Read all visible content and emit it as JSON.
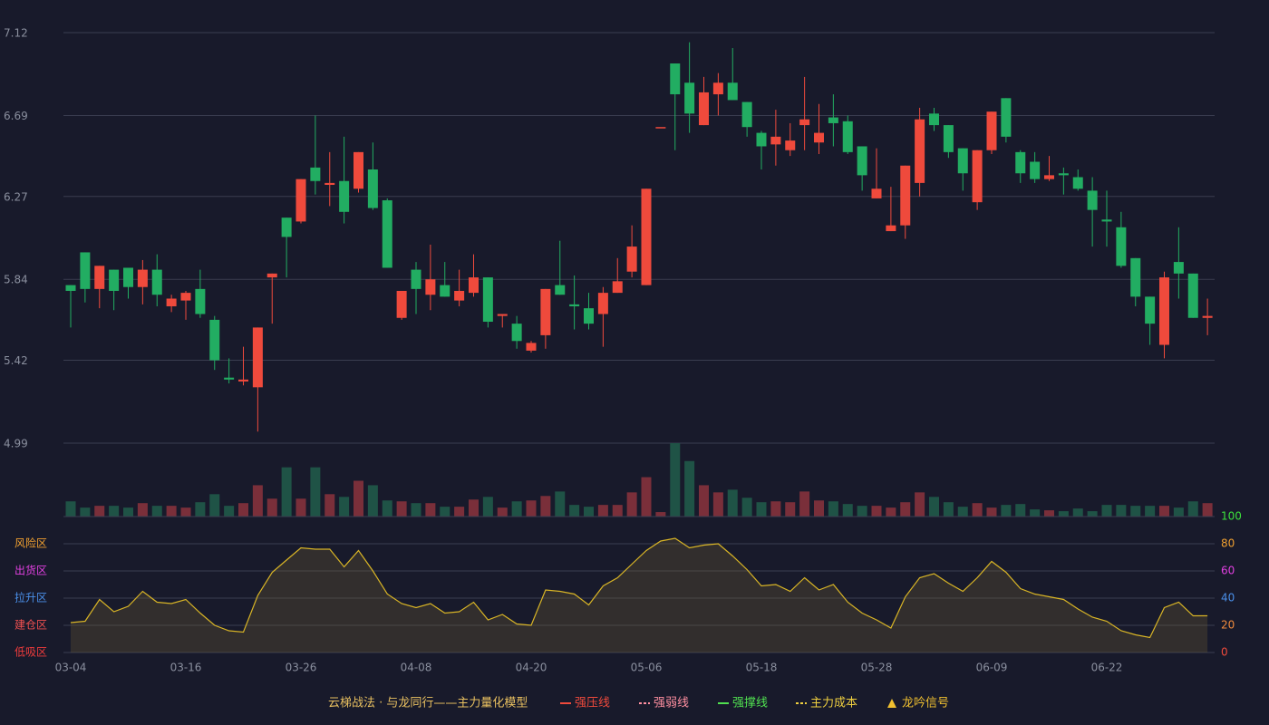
{
  "chart_data": {
    "type": "candlestick",
    "categories": [
      "03-04",
      null,
      null,
      null,
      null,
      null,
      null,
      null,
      "03-16",
      null,
      null,
      null,
      null,
      null,
      null,
      null,
      "03-26",
      null,
      null,
      null,
      null,
      null,
      null,
      null,
      "04-08",
      null,
      null,
      null,
      null,
      null,
      null,
      null,
      "04-20",
      null,
      null,
      null,
      null,
      null,
      null,
      null,
      "05-06",
      null,
      null,
      null,
      null,
      null,
      null,
      null,
      "05-18",
      null,
      null,
      null,
      null,
      null,
      null,
      null,
      "05-28",
      null,
      null,
      null,
      null,
      null,
      null,
      null,
      "06-09",
      null,
      null,
      null,
      null,
      null,
      null,
      null,
      "06-22",
      null,
      null,
      null,
      null,
      null,
      null,
      null
    ],
    "open": [
      5.81,
      5.98,
      5.79,
      5.89,
      5.9,
      5.8,
      5.89,
      5.7,
      5.73,
      5.79,
      5.63,
      5.33,
      5.31,
      5.28,
      5.85,
      6.16,
      6.14,
      6.42,
      6.33,
      6.35,
      6.31,
      6.41,
      6.25,
      5.64,
      5.89,
      5.76,
      5.81,
      5.73,
      5.77,
      5.85,
      5.65,
      5.61,
      5.47,
      5.55,
      5.81,
      5.71,
      5.69,
      5.66,
      5.77,
      5.88,
      5.81,
      6.63,
      6.96,
      6.86,
      6.64,
      6.8,
      6.86,
      6.76,
      6.6,
      6.54,
      6.51,
      6.64,
      6.55,
      6.68,
      6.66,
      6.53,
      6.26,
      6.09,
      6.12,
      6.34,
      6.7,
      6.64,
      6.52,
      6.24,
      6.51,
      6.78,
      6.5,
      6.45,
      6.36,
      6.39,
      6.37,
      6.3,
      6.15,
      6.11,
      5.95,
      5.75,
      5.5,
      5.93,
      5.87,
      5.64
    ],
    "close": [
      5.78,
      5.79,
      5.91,
      5.78,
      5.8,
      5.89,
      5.76,
      5.74,
      5.77,
      5.66,
      5.42,
      5.32,
      5.32,
      5.59,
      5.87,
      6.06,
      6.36,
      6.35,
      6.34,
      6.19,
      6.5,
      6.21,
      5.9,
      5.78,
      5.79,
      5.84,
      5.75,
      5.78,
      5.85,
      5.62,
      5.66,
      5.52,
      5.51,
      5.79,
      5.76,
      5.7,
      5.61,
      5.77,
      5.83,
      6.01,
      6.31,
      6.63,
      6.8,
      6.7,
      6.81,
      6.86,
      6.77,
      6.63,
      6.53,
      6.58,
      6.56,
      6.67,
      6.6,
      6.65,
      6.5,
      6.38,
      6.31,
      6.12,
      6.43,
      6.67,
      6.64,
      6.5,
      6.39,
      6.51,
      6.71,
      6.58,
      6.39,
      6.36,
      6.38,
      6.38,
      6.31,
      6.2,
      6.14,
      5.91,
      5.75,
      5.61,
      5.85,
      5.87,
      5.64,
      5.65
    ],
    "high": [
      5.81,
      5.98,
      5.91,
      5.89,
      5.9,
      5.94,
      5.97,
      5.76,
      5.78,
      5.89,
      5.65,
      5.43,
      5.49,
      5.59,
      5.87,
      6.16,
      6.36,
      6.69,
      6.5,
      6.58,
      6.5,
      6.55,
      6.26,
      5.78,
      5.93,
      6.02,
      5.93,
      5.89,
      5.97,
      5.85,
      5.66,
      5.65,
      5.52,
      5.79,
      6.04,
      5.86,
      5.77,
      5.8,
      5.95,
      6.12,
      6.31,
      6.63,
      6.96,
      7.07,
      6.89,
      6.91,
      7.04,
      6.76,
      6.61,
      6.72,
      6.65,
      6.89,
      6.75,
      6.8,
      6.69,
      6.53,
      6.52,
      6.32,
      6.43,
      6.73,
      6.73,
      6.64,
      6.52,
      6.51,
      6.71,
      6.78,
      6.51,
      6.5,
      6.48,
      6.42,
      6.41,
      6.37,
      6.3,
      6.19,
      5.95,
      5.75,
      5.88,
      6.11,
      5.87,
      5.74
    ],
    "low": [
      5.59,
      5.72,
      5.69,
      5.68,
      5.74,
      5.71,
      5.7,
      5.67,
      5.63,
      5.64,
      5.37,
      5.3,
      5.29,
      5.05,
      5.61,
      5.85,
      6.13,
      6.28,
      6.22,
      6.13,
      6.29,
      6.2,
      5.9,
      5.63,
      5.66,
      5.68,
      5.75,
      5.7,
      5.75,
      5.59,
      5.59,
      5.48,
      5.46,
      5.48,
      5.76,
      5.58,
      5.58,
      5.49,
      5.77,
      5.85,
      5.81,
      6.63,
      6.51,
      6.6,
      6.64,
      6.69,
      6.77,
      6.58,
      6.41,
      6.43,
      6.48,
      6.51,
      6.49,
      6.53,
      6.49,
      6.3,
      6.26,
      6.09,
      6.05,
      6.27,
      6.61,
      6.47,
      6.3,
      6.2,
      6.49,
      6.55,
      6.34,
      6.34,
      6.35,
      6.28,
      6.3,
      6.01,
      6.01,
      5.9,
      5.7,
      5.5,
      5.43,
      5.74,
      5.64,
      5.55
    ],
    "ylim": [
      4.99,
      7.12
    ],
    "yticks": [
      4.99,
      5.42,
      5.84,
      6.27,
      6.69,
      7.12
    ],
    "grid": true,
    "up_color": "#ef4a3c",
    "down_color": "#22ad62",
    "volume": {
      "values": [
        17,
        10,
        12,
        12,
        10,
        15,
        12,
        12,
        10,
        16,
        25,
        12,
        15,
        35,
        20,
        55,
        20,
        55,
        25,
        22,
        40,
        35,
        18,
        17,
        15,
        15,
        11,
        11,
        19,
        22,
        10,
        17,
        18,
        23,
        28,
        13,
        11,
        13,
        13,
        27,
        44,
        5,
        82,
        62,
        35,
        27,
        30,
        21,
        16,
        17,
        16,
        28,
        18,
        17,
        14,
        12,
        12,
        10,
        16,
        27,
        22,
        16,
        11,
        15,
        10,
        13,
        14,
        8,
        7,
        6,
        9,
        6,
        13,
        13,
        12,
        12,
        12,
        10,
        17,
        15
      ],
      "up_color": "#7a2f3a",
      "down_color": "#1f5346"
    },
    "oscillator": {
      "values": [
        22,
        23,
        39,
        30,
        34,
        45,
        37,
        36,
        39,
        29,
        20,
        16,
        15,
        42,
        59,
        68,
        77,
        76,
        76,
        63,
        75,
        60,
        43,
        36,
        33,
        36,
        29,
        30,
        37,
        24,
        28,
        21,
        20,
        46,
        45,
        43,
        35,
        49,
        55,
        65,
        75,
        82,
        84,
        77,
        79,
        80,
        71,
        61,
        49,
        50,
        45,
        55,
        46,
        50,
        37,
        29,
        24,
        18,
        41,
        55,
        58,
        51,
        45,
        55,
        67,
        59,
        47,
        43,
        41,
        39,
        32,
        26,
        23,
        16,
        13,
        11,
        33,
        37,
        27,
        27
      ],
      "color": "#d9b526",
      "ylim": [
        0,
        100
      ],
      "yticks": [
        0,
        20,
        40,
        60,
        80,
        100
      ],
      "ytick_colors": [
        "#ef4a3c",
        "#f08a3c",
        "#4a8fe8",
        "#e040e0",
        "#f0a030",
        "#3ce03c"
      ],
      "zones": [
        {
          "value": 80,
          "label": "风险区",
          "color": "#f0a030"
        },
        {
          "value": 60,
          "label": "出货区",
          "color": "#e040e0"
        },
        {
          "value": 40,
          "label": "拉升区",
          "color": "#4a8fe8"
        },
        {
          "value": 20,
          "label": "建仓区",
          "color": "#f05050"
        },
        {
          "value": 0,
          "label": "低吸区",
          "color": "#ef3c3c"
        }
      ]
    },
    "legend_title": "云梯战法 · 与龙同行——主力量化模型",
    "legend": [
      {
        "name": "强压线",
        "color": "#ef4a3c",
        "style": "solid"
      },
      {
        "name": "强弱线",
        "color": "#ff8fa0",
        "style": "dashed"
      },
      {
        "name": "强撑线",
        "color": "#50e050",
        "style": "solid"
      },
      {
        "name": "主力成本",
        "color": "#f0d040",
        "style": "dashed"
      },
      {
        "name": "龙吟信号",
        "color": "#f0c030",
        "style": "triangle"
      }
    ]
  }
}
